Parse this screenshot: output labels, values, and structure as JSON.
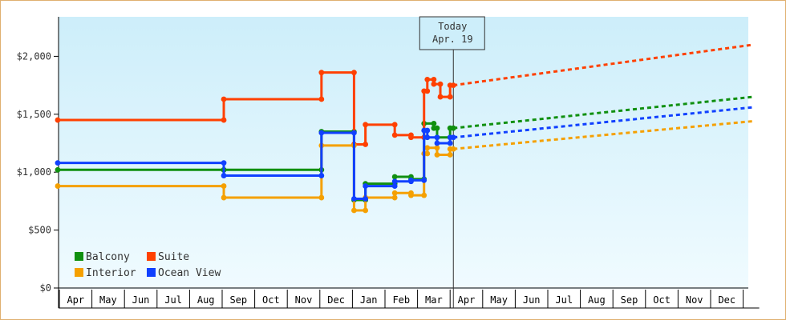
{
  "chart_data": {
    "type": "line",
    "title": "",
    "xlabel": "",
    "ylabel": "",
    "ylim": [
      0,
      2400
    ],
    "y_ticks": [
      {
        "value": 0,
        "label": "$0"
      },
      {
        "value": 500,
        "label": "$500"
      },
      {
        "value": 1000,
        "label": "$1,000"
      },
      {
        "value": 1500,
        "label": "$1,500"
      },
      {
        "value": 2000,
        "label": "$2,000"
      }
    ],
    "x_months": [
      "Apr",
      "May",
      "Jun",
      "Jul",
      "Aug",
      "Sep",
      "Oct",
      "Nov",
      "Dec",
      "Jan",
      "Feb",
      "Mar",
      "Apr",
      "May",
      "Jun",
      "Jul",
      "Aug",
      "Sep",
      "Oct",
      "Nov",
      "Dec"
    ],
    "x_unit": "month index (0 = first Apr)",
    "today": {
      "line1": "Today",
      "line2": "Apr. 19",
      "x": 12.1
    },
    "grid": "none",
    "background": "gradient light blue",
    "legend_position": "bottom-left",
    "series": [
      {
        "name": "Balcony",
        "color": "#109010",
        "points": [
          [
            -0.05,
            1020
          ],
          [
            5.05,
            1020
          ],
          [
            5.05,
            1020
          ],
          [
            8.05,
            1020
          ],
          [
            8.05,
            1350
          ],
          [
            9.05,
            1350
          ],
          [
            9.05,
            760
          ],
          [
            9.4,
            760
          ],
          [
            9.4,
            900
          ],
          [
            10.3,
            900
          ],
          [
            10.3,
            960
          ],
          [
            10.8,
            960
          ],
          [
            10.8,
            940
          ],
          [
            11.2,
            940
          ],
          [
            11.2,
            1420
          ],
          [
            11.5,
            1420
          ],
          [
            11.5,
            1380
          ],
          [
            11.6,
            1380
          ],
          [
            11.6,
            1300
          ],
          [
            12.0,
            1300
          ],
          [
            12.0,
            1380
          ],
          [
            12.1,
            1380
          ]
        ],
        "forecast": [
          [
            12.1,
            1380
          ],
          [
            21.3,
            1650
          ]
        ]
      },
      {
        "name": "Suite",
        "color": "#ff4000",
        "points": [
          [
            -0.05,
            1450
          ],
          [
            5.05,
            1450
          ],
          [
            5.05,
            1630
          ],
          [
            8.05,
            1630
          ],
          [
            8.05,
            1860
          ],
          [
            9.05,
            1860
          ],
          [
            9.05,
            1240
          ],
          [
            9.4,
            1240
          ],
          [
            9.4,
            1410
          ],
          [
            10.3,
            1410
          ],
          [
            10.3,
            1320
          ],
          [
            10.8,
            1320
          ],
          [
            10.8,
            1300
          ],
          [
            11.2,
            1300
          ],
          [
            11.2,
            1700
          ],
          [
            11.3,
            1700
          ],
          [
            11.3,
            1800
          ],
          [
            11.5,
            1800
          ],
          [
            11.5,
            1760
          ],
          [
            11.7,
            1760
          ],
          [
            11.7,
            1650
          ],
          [
            12.0,
            1650
          ],
          [
            12.0,
            1750
          ],
          [
            12.1,
            1750
          ]
        ],
        "forecast": [
          [
            12.1,
            1750
          ],
          [
            21.3,
            2100
          ]
        ]
      },
      {
        "name": "Interior",
        "color": "#f5a000",
        "points": [
          [
            -0.05,
            880
          ],
          [
            5.05,
            880
          ],
          [
            5.05,
            780
          ],
          [
            8.05,
            780
          ],
          [
            8.05,
            1230
          ],
          [
            9.05,
            1230
          ],
          [
            9.05,
            670
          ],
          [
            9.4,
            670
          ],
          [
            9.4,
            780
          ],
          [
            10.3,
            780
          ],
          [
            10.3,
            820
          ],
          [
            10.8,
            820
          ],
          [
            10.8,
            800
          ],
          [
            11.2,
            800
          ],
          [
            11.2,
            1160
          ],
          [
            11.3,
            1160
          ],
          [
            11.3,
            1210
          ],
          [
            11.6,
            1210
          ],
          [
            11.6,
            1150
          ],
          [
            12.0,
            1150
          ],
          [
            12.0,
            1200
          ],
          [
            12.1,
            1200
          ]
        ],
        "forecast": [
          [
            12.1,
            1200
          ],
          [
            21.3,
            1440
          ]
        ]
      },
      {
        "name": "Ocean View",
        "color": "#1040ff",
        "points": [
          [
            -0.05,
            1080
          ],
          [
            5.05,
            1080
          ],
          [
            5.05,
            970
          ],
          [
            8.05,
            970
          ],
          [
            8.05,
            1340
          ],
          [
            9.05,
            1340
          ],
          [
            9.05,
            770
          ],
          [
            9.4,
            770
          ],
          [
            9.4,
            880
          ],
          [
            10.3,
            880
          ],
          [
            10.3,
            920
          ],
          [
            10.8,
            920
          ],
          [
            10.8,
            930
          ],
          [
            11.2,
            930
          ],
          [
            11.2,
            1360
          ],
          [
            11.3,
            1360
          ],
          [
            11.3,
            1300
          ],
          [
            11.6,
            1300
          ],
          [
            11.6,
            1250
          ],
          [
            12.0,
            1250
          ],
          [
            12.0,
            1300
          ],
          [
            12.1,
            1300
          ]
        ],
        "forecast": [
          [
            12.1,
            1300
          ],
          [
            21.3,
            1560
          ]
        ]
      }
    ]
  }
}
